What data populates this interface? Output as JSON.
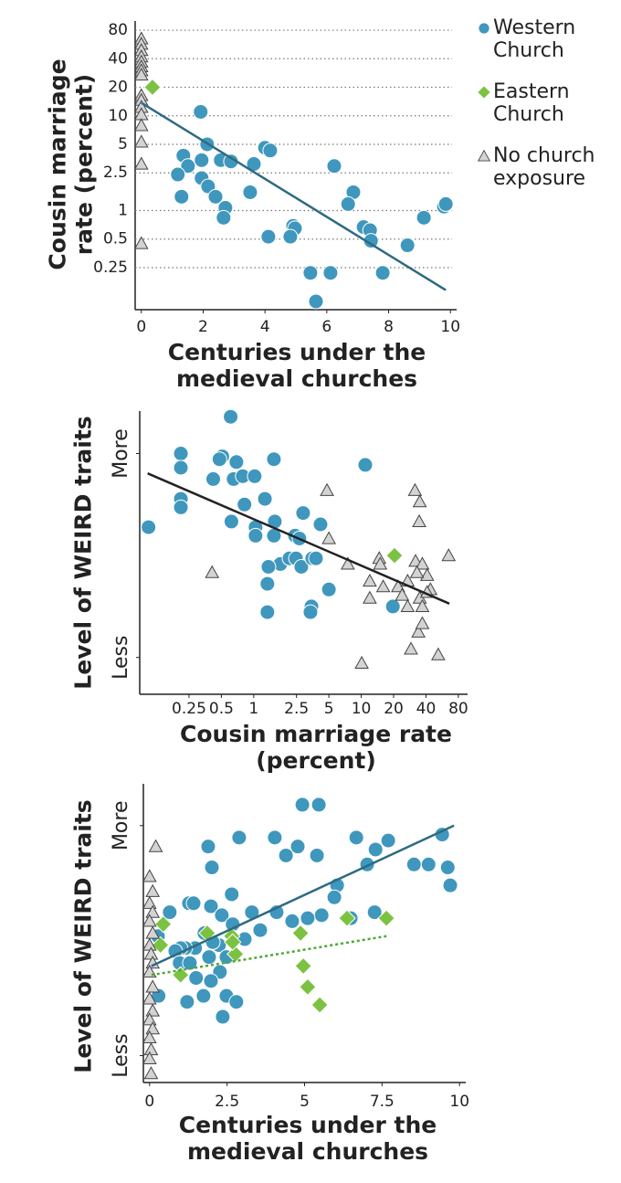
{
  "chart_data": [
    {
      "type": "scatter",
      "x_label": "Centuries under the medieval churches",
      "y_label": "Cousin marriage rate (percent)",
      "xlim": [
        -0.2,
        10.2
      ],
      "xticks": [
        0,
        2,
        4,
        6,
        8,
        10
      ],
      "ylim": [
        0.09,
        100
      ],
      "yscale": "log",
      "yticks": [
        80,
        40,
        20,
        10,
        5,
        2.5,
        1,
        0.5,
        0.25
      ],
      "grid": true,
      "legend": "right",
      "series": [
        {
          "name": "Western Church",
          "color": "#3f97bd",
          "marker": "circle",
          "x": [
            1.92,
            2.13,
            1.36,
            1.95,
            1.51,
            1.18,
            1.95,
            2.16,
            2.4,
            1.3,
            2.57,
            2.9,
            4.0,
            4.17,
            3.64,
            3.52,
            2.72,
            2.66,
            4.11,
            4.91,
            4.97,
            4.82,
            5.47,
            5.65,
            6.12,
            6.24,
            6.86,
            6.69,
            7.19,
            7.4,
            7.43,
            7.81,
            8.61,
            9.14,
            9.79,
            9.85
          ],
          "values": [
            11,
            5,
            3.8,
            3.4,
            2.95,
            2.4,
            2.2,
            1.8,
            1.4,
            1.4,
            3.4,
            3.3,
            4.6,
            4.3,
            3.1,
            1.56,
            1.07,
            0.84,
            0.53,
            0.69,
            0.65,
            0.53,
            0.22,
            0.11,
            0.22,
            2.95,
            1.56,
            1.17,
            0.67,
            0.62,
            0.48,
            0.22,
            0.43,
            0.84,
            1.1,
            1.17
          ]
        },
        {
          "name": "Eastern Church",
          "color": "#7cc242",
          "marker": "diamond",
          "x": [
            0.36
          ],
          "values": [
            20
          ]
        },
        {
          "name": "No church exposure",
          "color": "#d3d3d3",
          "marker": "triangle",
          "x": [
            0,
            0,
            0,
            0,
            0,
            0,
            0,
            0,
            0,
            0,
            0,
            0,
            0,
            0,
            0,
            0
          ],
          "values": [
            65,
            57,
            49,
            42,
            37,
            33,
            30,
            27,
            16.4,
            14.6,
            12.3,
            10.3,
            7.9,
            5.3,
            3.1,
            0.45
          ]
        }
      ],
      "trend": [
        {
          "color": "#2e6a82",
          "dash": false,
          "x": [
            0,
            9.85
          ],
          "y": [
            13.7,
            0.145
          ]
        }
      ]
    },
    {
      "type": "scatter",
      "x_label": "Cousin marriage rate (percent)",
      "y_label": "Level of WEIRD traits",
      "xlim": [
        0.087,
        97.5
      ],
      "xscale": "log",
      "xticks": [
        0.25,
        0.5,
        1,
        2.5,
        5,
        10,
        20,
        40,
        80
      ],
      "ylim": [
        0,
        100
      ],
      "yticks": [
        {
          "value": 85,
          "label": "More"
        },
        {
          "value": 13,
          "label": "Less"
        }
      ],
      "grid": false,
      "series": [
        {
          "color": "#3f97bd",
          "marker": "circle",
          "x": [
            0.61,
            0.21,
            0.21,
            0.51,
            0.48,
            0.69,
            0.42,
            0.65,
            0.79,
            1.02,
            1.54,
            1.27,
            0.82,
            0.21,
            0.21,
            0.105,
            0.62,
            1.04,
            1.57,
            2.88,
            4.18,
            1.54,
            1.04,
            2.42,
            2.66,
            1.77,
            1.37,
            2.15,
            2.47,
            2.77,
            3.5,
            3.79,
            1.34,
            3.44,
            3.37,
            1.34,
            5.0,
            10.9,
            19.7
          ],
          "values": [
            98,
            85,
            80,
            84,
            83,
            82,
            76,
            76,
            77,
            77,
            83,
            69,
            67,
            69,
            66,
            59,
            61,
            59,
            61,
            64,
            60,
            56,
            56,
            56,
            55,
            46,
            45,
            48,
            48,
            45,
            48,
            48,
            39,
            31,
            29,
            29,
            37,
            81,
            31
          ]
        },
        {
          "color": "#7cc242",
          "marker": "diamond",
          "x": [
            20.4
          ],
          "values": [
            49
          ]
        },
        {
          "color": "#d3d3d3",
          "marker": "triangle",
          "x": [
            0.41,
            4.8,
            5.0,
            7.5,
            14.7,
            15,
            12,
            12,
            10.1,
            16,
            22,
            24,
            27,
            31.6,
            35,
            34.6,
            32,
            37,
            41,
            44,
            35,
            37,
            34,
            37,
            29,
            52,
            65,
            27,
            41,
            33
          ],
          "values": [
            43,
            72,
            55,
            46,
            48,
            46,
            40,
            34,
            11,
            38,
            38,
            35,
            31,
            72,
            68,
            61,
            47,
            46,
            42,
            37,
            34,
            31,
            22,
            25,
            16,
            14,
            49,
            40,
            36,
            43
          ]
        }
      ],
      "trend": [
        {
          "color": "#222222",
          "dash": false,
          "x": [
            0.103,
            66
          ],
          "y": [
            78,
            32
          ]
        }
      ]
    },
    {
      "type": "scatter",
      "x_label": "Centuries under the medieval churches",
      "y_label": "Level of WEIRD traits",
      "xlim": [
        -0.2,
        10.2
      ],
      "xticks": [
        0,
        2.5,
        5,
        7.5,
        10
      ],
      "ylim": [
        0,
        100
      ],
      "yticks": [
        {
          "value": 86,
          "label": "More"
        },
        {
          "value": 9,
          "label": "Less"
        }
      ],
      "grid": false,
      "series": [
        {
          "color": "#3f97bd",
          "marker": "circle",
          "x": [
            4.93,
            5.46,
            2.89,
            4.04,
            4.4,
            4.78,
            5.4,
            6.67,
            7.7,
            7.29,
            7.02,
            8.53,
            9.0,
            9.62,
            9.44,
            9.7,
            1.89,
            2.01,
            6.05,
            5.96,
            5.55,
            5.1,
            4.1,
            4.6,
            3.57,
            3.3,
            2.65,
            1.27,
            1.42,
            0.65,
            1.98,
            2.33,
            2.68,
            3.07,
            2.24,
            2.04,
            1.77,
            1.47,
            1.15,
            1.0,
            0.83,
            0.97,
            1.3,
            1.92,
            2.48,
            2.27,
            1.98,
            1.5,
            2.48,
            1.74,
            2.8,
            1.21,
            2.36,
            0.29,
            7.26,
            6.49,
            0.27
          ],
          "values": [
            93,
            93,
            82,
            82,
            76,
            79,
            76,
            82,
            81,
            78,
            73,
            73,
            73,
            72,
            83,
            66,
            79,
            72,
            66,
            62,
            56,
            55,
            57,
            54,
            51,
            57,
            63,
            60,
            60,
            57,
            59,
            56,
            53,
            48,
            46,
            47,
            50,
            45,
            45,
            45,
            44,
            40,
            40,
            42,
            42,
            37,
            34,
            35,
            29,
            29,
            27,
            27,
            22,
            29,
            57,
            55,
            49
          ]
        },
        {
          "color": "#7cc242",
          "marker": "diamond",
          "x": [
            0.44,
            0.35,
            1.0,
            1.86,
            2.65,
            2.77,
            2.68,
            4.87,
            4.96,
            5.1,
            5.49,
            6.37,
            7.64
          ],
          "values": [
            53,
            46,
            36,
            50,
            49,
            43,
            47,
            50,
            39,
            32,
            26,
            55,
            55
          ]
        },
        {
          "color": "#d3d3d3",
          "marker": "triangle",
          "x": [
            0.2,
            0,
            0.1,
            0,
            0.1,
            0,
            0.1,
            0,
            0.05,
            0.1,
            0,
            0.1,
            0,
            0.1,
            0,
            0.1,
            0,
            0.05,
            0,
            0.05
          ],
          "values": [
            79,
            69,
            64,
            60,
            57,
            54,
            50,
            46,
            43,
            40,
            37,
            32,
            28,
            24,
            21,
            18,
            15,
            11,
            8,
            3
          ]
        }
      ],
      "trend": [
        {
          "color": "#2e6a82",
          "dash": false,
          "x": [
            0.06,
            9.82
          ],
          "y": [
            39,
            86
          ]
        },
        {
          "color": "#4fa832",
          "dash": true,
          "x": [
            0.06,
            7.64
          ],
          "y": [
            36,
            49
          ]
        }
      ]
    }
  ]
}
